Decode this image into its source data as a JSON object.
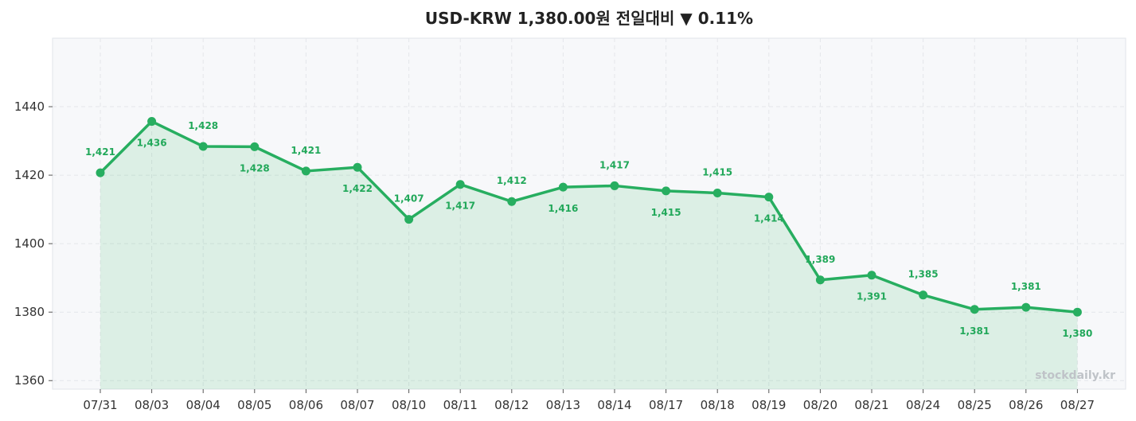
{
  "colors": {
    "line": "#27ae60",
    "area": "#27ae60",
    "plot_bg": "#f7f8fa",
    "grid": "#e4e6ea",
    "label": "#22a85a"
  },
  "watermark": "stockdaily.kr",
  "chart_data": {
    "type": "line",
    "title": "USD-KRW  1,380.00원  전일대비 ▼ 0.11%",
    "xlabel": "",
    "ylabel": "",
    "categories": [
      "07/31",
      "08/03",
      "08/04",
      "08/05",
      "08/06",
      "08/07",
      "08/10",
      "08/11",
      "08/12",
      "08/13",
      "08/14",
      "08/17",
      "08/18",
      "08/19",
      "08/20",
      "08/21",
      "08/24",
      "08/25",
      "08/26",
      "08/27"
    ],
    "values": [
      1420.7,
      1435.7,
      1428.4,
      1428.3,
      1421.2,
      1422.3,
      1407.1,
      1417.3,
      1412.3,
      1416.5,
      1416.9,
      1415.4,
      1414.8,
      1413.6,
      1389.4,
      1390.8,
      1385.0,
      1380.8,
      1381.4,
      1380.0
    ],
    "data_labels": [
      "1,421",
      "1,436",
      "1,428",
      "1,428",
      "1,421",
      "1,422",
      "1,407",
      "1,417",
      "1,412",
      "1,416",
      "1,417",
      "1,415",
      "1,415",
      "1,414",
      "1,389",
      "1,391",
      "1,385",
      "1,381",
      "1,381",
      "1,380"
    ],
    "label_positions": [
      "above",
      "below",
      "above",
      "below",
      "above",
      "below",
      "above",
      "below",
      "above",
      "below",
      "above",
      "below",
      "above",
      "below",
      "above",
      "below",
      "above",
      "below",
      "above",
      "below"
    ],
    "yticks": [
      1360,
      1380,
      1400,
      1420,
      1440
    ],
    "ylim": [
      1357.5,
      1460
    ],
    "grid": true,
    "area_fill": true
  }
}
